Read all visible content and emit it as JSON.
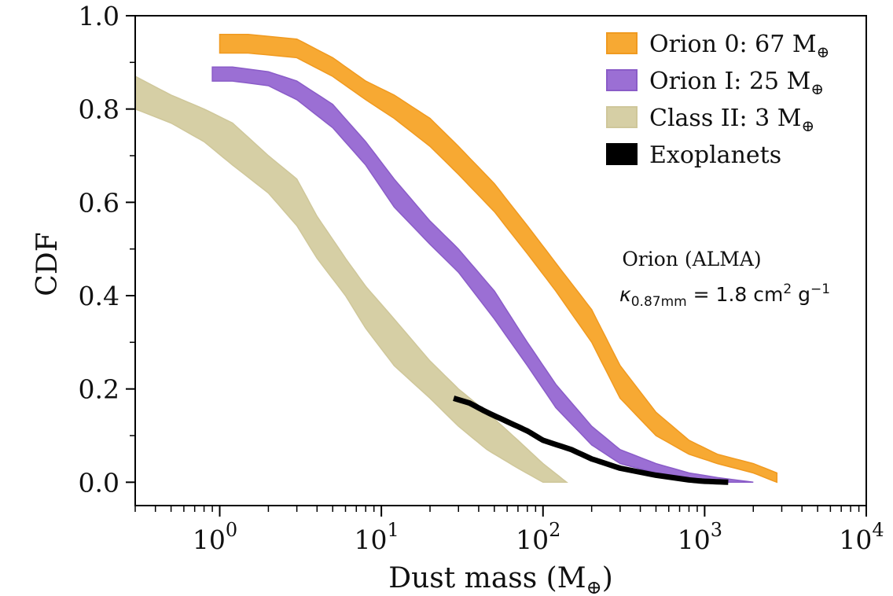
{
  "chart_data": {
    "type": "area",
    "xscale": "log",
    "xlabel": "Dust mass (M",
    "xlabel_sub": "⊕",
    "xlabel_close": ")",
    "ylabel": "CDF",
    "xlim": [
      0.3,
      10000
    ],
    "ylim": [
      -0.05,
      1.0
    ],
    "x_ticks": [
      {
        "value": 1,
        "base": "10",
        "exp": "0"
      },
      {
        "value": 10,
        "base": "10",
        "exp": "1"
      },
      {
        "value": 100,
        "base": "10",
        "exp": "2"
      },
      {
        "value": 1000,
        "base": "10",
        "exp": "3"
      },
      {
        "value": 10000,
        "base": "10",
        "exp": "4"
      }
    ],
    "y_ticks": [
      {
        "value": 0.0,
        "label": "0.0"
      },
      {
        "value": 0.2,
        "label": "0.2"
      },
      {
        "value": 0.4,
        "label": "0.4"
      },
      {
        "value": 0.6,
        "label": "0.6"
      },
      {
        "value": 0.8,
        "label": "0.8"
      },
      {
        "value": 1.0,
        "label": "1.0"
      }
    ],
    "legend_position": "top-right",
    "series": [
      {
        "name": "Class II",
        "legend_label": "Class II: 3 M",
        "legend_sub": "⊕",
        "kind": "band",
        "color": "#d6cfa5",
        "edge": "#cfc79a",
        "x": [
          0.3,
          0.5,
          0.8,
          1.2,
          2.0,
          3.0,
          4.0,
          6.0,
          8.0,
          12,
          20,
          30,
          45,
          70,
          100,
          140
        ],
        "upper": [
          0.87,
          0.83,
          0.8,
          0.77,
          0.7,
          0.65,
          0.57,
          0.48,
          0.42,
          0.35,
          0.26,
          0.2,
          0.15,
          0.09,
          0.04,
          0.0
        ],
        "lower": [
          0.8,
          0.77,
          0.73,
          0.68,
          0.62,
          0.55,
          0.48,
          0.4,
          0.33,
          0.25,
          0.18,
          0.12,
          0.07,
          0.03,
          0.0,
          0.0
        ]
      },
      {
        "name": "Orion I",
        "legend_label": "Orion I: 25 M",
        "legend_sub": "⊕",
        "kind": "band",
        "color": "#9b6fd4",
        "edge": "#8a5cc8",
        "x": [
          0.9,
          1.2,
          2.0,
          3.0,
          5.0,
          8.0,
          12,
          20,
          30,
          50,
          80,
          120,
          200,
          300,
          500,
          800,
          1200,
          2000
        ],
        "upper": [
          0.89,
          0.89,
          0.88,
          0.86,
          0.81,
          0.73,
          0.65,
          0.56,
          0.5,
          0.41,
          0.3,
          0.21,
          0.12,
          0.07,
          0.04,
          0.02,
          0.01,
          0.0
        ],
        "lower": [
          0.86,
          0.86,
          0.85,
          0.82,
          0.76,
          0.68,
          0.59,
          0.51,
          0.45,
          0.35,
          0.25,
          0.16,
          0.08,
          0.04,
          0.02,
          0.01,
          0.0,
          0.0
        ]
      },
      {
        "name": "Orion 0",
        "legend_label": "Orion 0: 67 M",
        "legend_sub": "⊕",
        "kind": "band",
        "color": "#f7a933",
        "edge": "#f09a20",
        "x": [
          1.0,
          1.5,
          3.0,
          5.0,
          8.0,
          12,
          20,
          30,
          50,
          80,
          120,
          200,
          300,
          500,
          800,
          1200,
          2000,
          2800
        ],
        "upper": [
          0.96,
          0.96,
          0.95,
          0.91,
          0.86,
          0.83,
          0.78,
          0.72,
          0.64,
          0.55,
          0.47,
          0.37,
          0.25,
          0.15,
          0.09,
          0.06,
          0.04,
          0.02
        ],
        "lower": [
          0.92,
          0.92,
          0.91,
          0.87,
          0.82,
          0.78,
          0.72,
          0.66,
          0.58,
          0.49,
          0.41,
          0.3,
          0.18,
          0.1,
          0.06,
          0.04,
          0.02,
          0.0
        ]
      },
      {
        "name": "Exoplanets",
        "legend_label": "Exoplanets",
        "legend_sub": "",
        "kind": "line",
        "color": "#000000",
        "edge": "#000000",
        "x": [
          28,
          35,
          45,
          60,
          80,
          100,
          150,
          200,
          300,
          500,
          800,
          1000,
          1400
        ],
        "y": [
          0.18,
          0.17,
          0.15,
          0.13,
          0.11,
          0.09,
          0.07,
          0.05,
          0.03,
          0.015,
          0.005,
          0.002,
          0.0
        ]
      }
    ],
    "legend_order": [
      "Orion 0",
      "Orion I",
      "Class II",
      "Exoplanets"
    ],
    "annotation": {
      "line1": "Orion (ALMA)",
      "kappa_symbol": "κ",
      "kappa_sub": "0.87mm",
      "kappa_rest": " = 1.8 cm",
      "kappa_sup1": "2",
      "kappa_unit": " g",
      "kappa_sup2": "−1"
    }
  }
}
